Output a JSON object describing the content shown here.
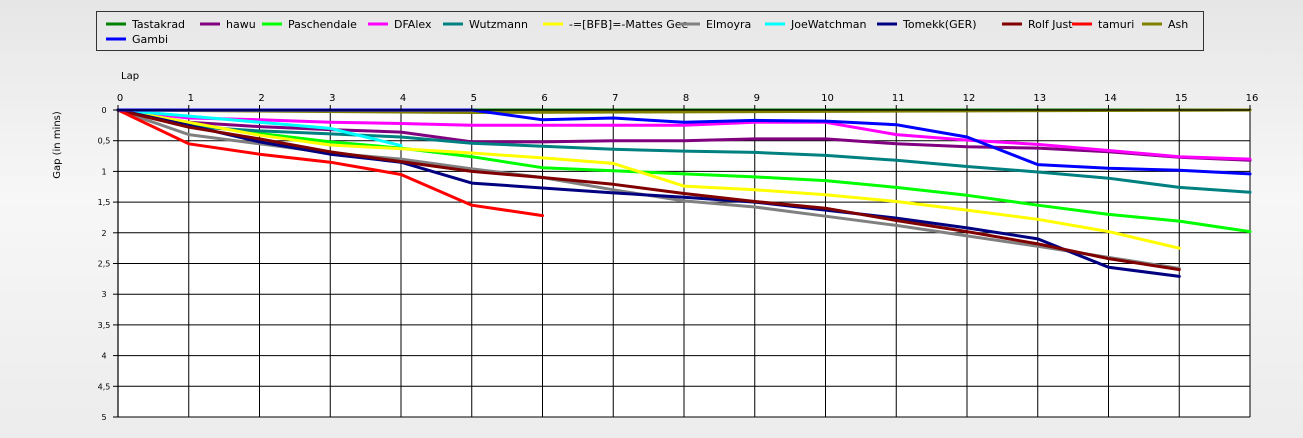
{
  "chart_data": {
    "type": "line",
    "title": "",
    "xlabel": "Lap",
    "ylabel": "Gap (in mins)",
    "xlim": [
      0,
      16
    ],
    "ylim": [
      0,
      5
    ],
    "y_inverted": true,
    "grid": true,
    "legend_position": "top",
    "x_ticks": [
      "0",
      "1",
      "2",
      "3",
      "4",
      "5",
      "6",
      "7",
      "8",
      "9",
      "10",
      "11",
      "12",
      "13",
      "14",
      "15",
      "16"
    ],
    "y_ticks": [
      "0",
      "0,5",
      "1",
      "1,5",
      "2",
      "2,5",
      "3",
      "3,5",
      "4",
      "4,5",
      "5"
    ],
    "series": [
      {
        "name": "Tastakrad",
        "color": "#008000",
        "x": [
          0,
          16
        ],
        "y": [
          0,
          0
        ]
      },
      {
        "name": "hawu",
        "color": "#800080",
        "x": [
          0,
          1,
          2,
          3,
          4,
          5,
          6,
          7,
          8,
          9,
          10,
          11,
          12,
          13,
          14,
          15,
          16
        ],
        "y": [
          0,
          0.2,
          0.27,
          0.32,
          0.36,
          0.52,
          0.52,
          0.5,
          0.5,
          0.47,
          0.47,
          0.55,
          0.6,
          0.62,
          0.68,
          0.77,
          0.82
        ]
      },
      {
        "name": "Paschendale",
        "color": "#00ff00",
        "x": [
          0,
          1,
          2,
          3,
          4,
          5,
          6,
          7,
          8,
          9,
          10,
          11,
          12,
          13,
          14,
          15,
          16
        ],
        "y": [
          0,
          0.23,
          0.38,
          0.52,
          0.62,
          0.76,
          0.94,
          0.99,
          1.04,
          1.09,
          1.15,
          1.26,
          1.39,
          1.55,
          1.7,
          1.81,
          1.98
        ]
      },
      {
        "name": "DFAlex",
        "color": "#ff00ff",
        "x": [
          0,
          1,
          2,
          3,
          4,
          5,
          6,
          7,
          8,
          9,
          10,
          11,
          12,
          13,
          14,
          15,
          16
        ],
        "y": [
          0,
          0.13,
          0.16,
          0.2,
          0.22,
          0.25,
          0.25,
          0.25,
          0.25,
          0.2,
          0.2,
          0.4,
          0.49,
          0.56,
          0.66,
          0.76,
          0.8
        ]
      },
      {
        "name": "Wutzmann",
        "color": "#008080",
        "x": [
          0,
          1,
          2,
          3,
          4,
          5,
          6,
          7,
          8,
          9,
          10,
          11,
          12,
          13,
          14,
          15,
          16
        ],
        "y": [
          0,
          0.27,
          0.34,
          0.39,
          0.44,
          0.54,
          0.59,
          0.64,
          0.67,
          0.69,
          0.74,
          0.82,
          0.92,
          1.01,
          1.11,
          1.26,
          1.34
        ]
      },
      {
        "name": "-=[BFB]=-Mattes Gee",
        "color": "#ffff00",
        "x": [
          0,
          1,
          2,
          3,
          4,
          5,
          6,
          7,
          8,
          9,
          10,
          11,
          12,
          13,
          14,
          15
        ],
        "y": [
          0,
          0.2,
          0.41,
          0.57,
          0.63,
          0.7,
          0.78,
          0.87,
          1.24,
          1.3,
          1.38,
          1.49,
          1.63,
          1.78,
          1.98,
          2.25
        ]
      },
      {
        "name": "Elmoyra",
        "color": "#808080",
        "x": [
          0,
          1,
          2,
          3,
          4,
          5,
          6,
          7,
          8,
          9,
          10,
          11,
          12,
          13,
          14,
          15
        ],
        "y": [
          0,
          0.4,
          0.55,
          0.7,
          0.8,
          0.96,
          1.1,
          1.3,
          1.48,
          1.58,
          1.73,
          1.88,
          2.05,
          2.22,
          2.4,
          2.58
        ]
      },
      {
        "name": "JoeWatchman",
        "color": "#00ffff",
        "x": [
          0,
          1,
          2,
          3,
          4
        ],
        "y": [
          0,
          0.1,
          0.2,
          0.3,
          0.58
        ]
      },
      {
        "name": "Tomekk(GER)",
        "color": "#000080",
        "x": [
          0,
          1,
          2,
          3,
          4,
          5,
          6,
          7,
          8,
          9,
          10,
          11,
          12,
          13,
          14,
          15
        ],
        "y": [
          0,
          0.25,
          0.52,
          0.72,
          0.85,
          1.19,
          1.27,
          1.35,
          1.42,
          1.5,
          1.63,
          1.76,
          1.92,
          2.1,
          2.56,
          2.71
        ]
      },
      {
        "name": "Rolf Just",
        "color": "#800000",
        "x": [
          0,
          1,
          2,
          3,
          4,
          5,
          6,
          7,
          8,
          9,
          10,
          11,
          12,
          13,
          14,
          15
        ],
        "y": [
          0,
          0.28,
          0.47,
          0.68,
          0.84,
          1.0,
          1.1,
          1.21,
          1.36,
          1.49,
          1.6,
          1.8,
          1.98,
          2.18,
          2.42,
          2.6
        ]
      },
      {
        "name": "tamuri",
        "color": "#ff0000",
        "x": [
          0,
          1,
          2,
          3,
          4,
          5,
          6
        ],
        "y": [
          0,
          0.55,
          0.72,
          0.85,
          1.05,
          1.55,
          1.72
        ]
      },
      {
        "name": "Ash",
        "color": "#808000",
        "x": [
          0,
          5,
          16
        ],
        "y": [
          0,
          0.04,
          0
        ]
      },
      {
        "name": "Gambi",
        "color": "#0000ff",
        "x": [
          0,
          1,
          2,
          3,
          4,
          5,
          6,
          7,
          8,
          9,
          10,
          11,
          12,
          13,
          14,
          15,
          16
        ],
        "y": [
          0,
          0,
          0,
          0,
          0,
          0,
          0.16,
          0.13,
          0.2,
          0.17,
          0.18,
          0.24,
          0.44,
          0.89,
          0.95,
          0.98,
          1.04
        ]
      }
    ]
  }
}
